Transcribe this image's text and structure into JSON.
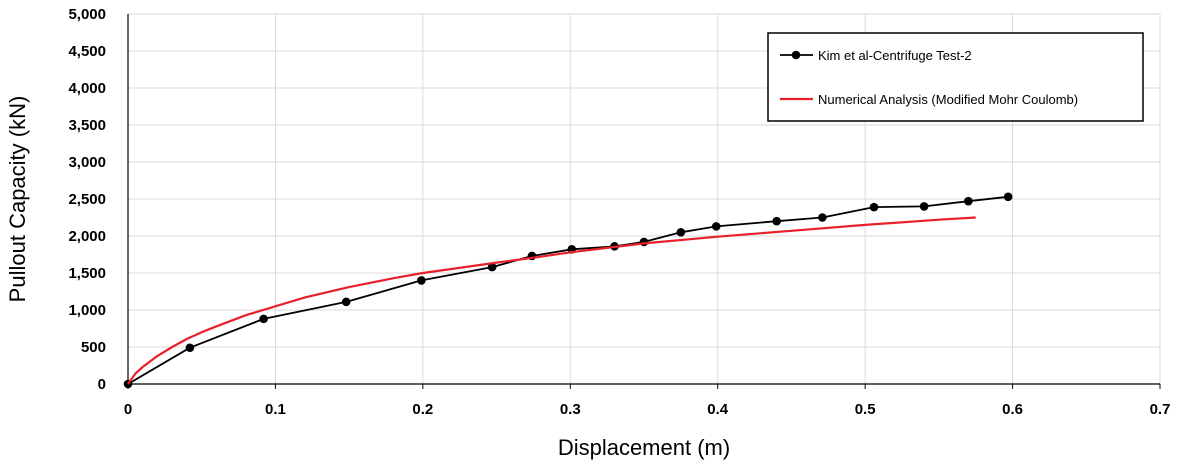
{
  "chart_data": {
    "type": "line",
    "title": "",
    "xlabel": "Displacement (m)",
    "ylabel": "Pullout Capacity (kN)",
    "xlim": [
      0,
      0.7
    ],
    "ylim": [
      0,
      5000
    ],
    "x_ticks": [
      0,
      0.1,
      0.2,
      0.3,
      0.4,
      0.5,
      0.6,
      0.7
    ],
    "x_tick_labels": [
      "0",
      "0.1",
      "0.2",
      "0.3",
      "0.4",
      "0.5",
      "0.6",
      "0.7"
    ],
    "y_ticks": [
      0,
      500,
      1000,
      1500,
      2000,
      2500,
      3000,
      3500,
      4000,
      4500,
      5000
    ],
    "y_tick_labels": [
      "0",
      "500",
      "1,000",
      "1,500",
      "2,000",
      "2,500",
      "3,000",
      "3,500",
      "4,000",
      "4,500",
      "5,000"
    ],
    "grid": true,
    "legend_position": "top-right",
    "series": [
      {
        "name": "Kim et al-Centrifuge Test-2",
        "color": "#000000",
        "marker": "circle",
        "x": [
          0,
          0.042,
          0.092,
          0.148,
          0.199,
          0.247,
          0.274,
          0.301,
          0.33,
          0.35,
          0.375,
          0.399,
          0.44,
          0.471,
          0.506,
          0.54,
          0.57,
          0.597
        ],
        "y": [
          0,
          490,
          880,
          1110,
          1400,
          1580,
          1730,
          1820,
          1860,
          1920,
          2050,
          2130,
          2200,
          2250,
          2390,
          2400,
          2470,
          2530
        ]
      },
      {
        "name": "Numerical Analysis (Modified Mohr Coulomb)",
        "color": "#e8202a",
        "marker": "none",
        "x": [
          0,
          0.005,
          0.01,
          0.02,
          0.03,
          0.04,
          0.05,
          0.06,
          0.08,
          0.1,
          0.12,
          0.15,
          0.18,
          0.2,
          0.25,
          0.28,
          0.3,
          0.35,
          0.4,
          0.45,
          0.5,
          0.55,
          0.575
        ],
        "y": [
          0,
          140,
          230,
          380,
          500,
          610,
          700,
          780,
          930,
          1050,
          1170,
          1310,
          1430,
          1500,
          1640,
          1720,
          1780,
          1900,
          1990,
          2070,
          2150,
          2220,
          2250
        ]
      }
    ]
  }
}
